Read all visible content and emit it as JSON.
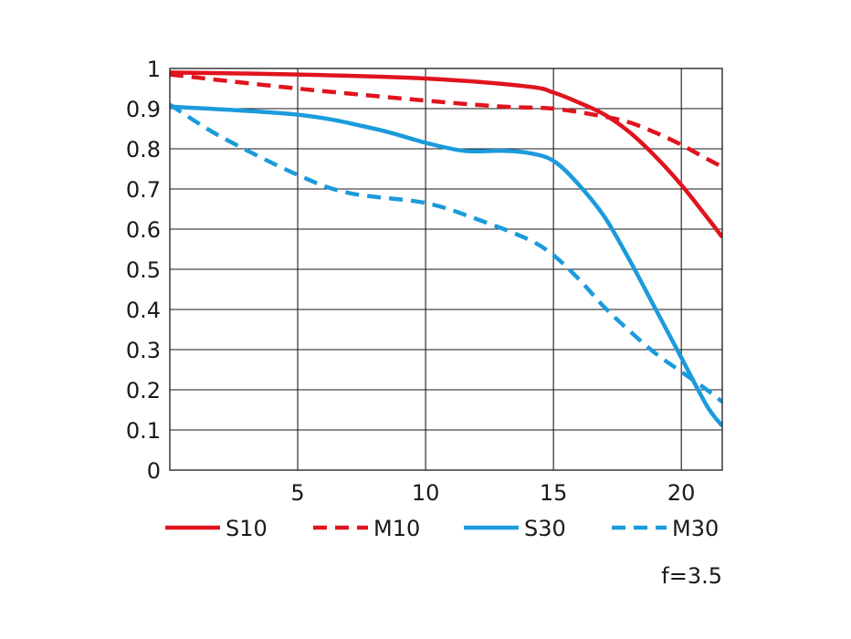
{
  "chart_data": {
    "type": "line",
    "title": "",
    "xlabel": "",
    "ylabel": "",
    "xlim": [
      0,
      21.6
    ],
    "ylim": [
      0,
      1
    ],
    "x_ticks": [
      5,
      10,
      15,
      20
    ],
    "x_tick_labels": [
      "5",
      "10",
      "15",
      "20"
    ],
    "y_ticks": [
      0,
      0.1,
      0.2,
      0.3,
      0.4,
      0.5,
      0.6,
      0.7,
      0.8,
      0.9,
      1
    ],
    "y_tick_labels": [
      "0",
      "0.1",
      "0.2",
      "0.3",
      "0.4",
      "0.5",
      "0.6",
      "0.7",
      "0.8",
      "0.9",
      "1"
    ],
    "grid": true,
    "legend_position": "bottom",
    "annotation": "f=3.5",
    "series": [
      {
        "name": "S10",
        "color": "#e0141e",
        "dash": "solid",
        "x": [
          0,
          5,
          10,
          14,
          15,
          16,
          17,
          18,
          19,
          20,
          21,
          21.6
        ],
        "y": [
          0.99,
          0.985,
          0.975,
          0.955,
          0.94,
          0.915,
          0.885,
          0.84,
          0.78,
          0.71,
          0.63,
          0.58
        ]
      },
      {
        "name": "M10",
        "color": "#e0141e",
        "dash": "dashed",
        "x": [
          0,
          5,
          10,
          13,
          15,
          17,
          18,
          19,
          20,
          21,
          21.6
        ],
        "y": [
          0.985,
          0.95,
          0.92,
          0.905,
          0.9,
          0.88,
          0.865,
          0.84,
          0.81,
          0.775,
          0.755
        ]
      },
      {
        "name": "S30",
        "color": "#1b9bdc",
        "dash": "solid",
        "x": [
          0,
          5,
          8,
          10,
          11.5,
          13,
          14,
          15,
          16,
          17,
          18,
          19,
          20,
          21,
          21.6
        ],
        "y": [
          0.905,
          0.885,
          0.85,
          0.815,
          0.795,
          0.795,
          0.79,
          0.77,
          0.71,
          0.63,
          0.52,
          0.4,
          0.28,
          0.16,
          0.11
        ]
      },
      {
        "name": "M30",
        "color": "#1b9bdc",
        "dash": "dashed",
        "x": [
          0,
          2,
          5,
          7,
          10,
          12,
          14,
          15,
          16,
          17,
          18,
          19,
          20,
          21,
          21.6
        ],
        "y": [
          0.91,
          0.83,
          0.735,
          0.69,
          0.665,
          0.625,
          0.575,
          0.535,
          0.475,
          0.405,
          0.345,
          0.29,
          0.245,
          0.2,
          0.17
        ]
      }
    ]
  }
}
